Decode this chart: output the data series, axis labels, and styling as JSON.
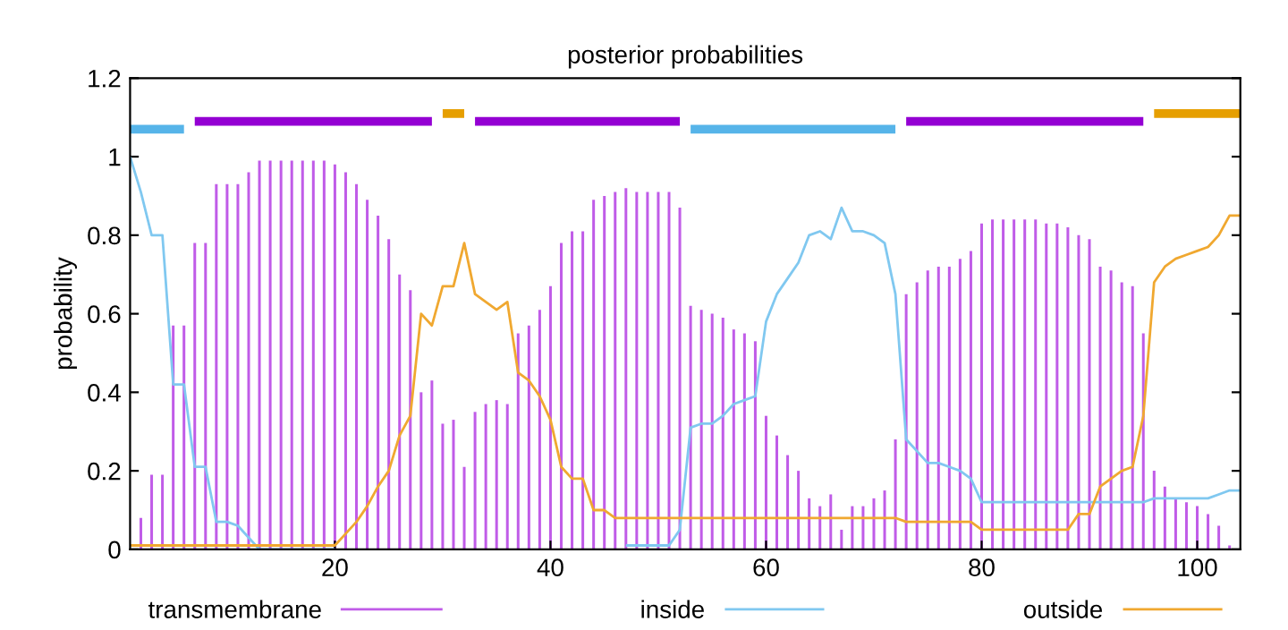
{
  "chart_data": {
    "type": "line",
    "title": "posterior probabilities",
    "ylabel": "probability",
    "x": [
      1,
      2,
      3,
      4,
      5,
      6,
      7,
      8,
      9,
      10,
      11,
      12,
      13,
      14,
      15,
      16,
      17,
      18,
      19,
      20,
      21,
      22,
      23,
      24,
      25,
      26,
      27,
      28,
      29,
      30,
      31,
      32,
      33,
      34,
      35,
      36,
      37,
      38,
      39,
      40,
      41,
      42,
      43,
      44,
      45,
      46,
      47,
      48,
      49,
      50,
      51,
      52,
      53,
      54,
      55,
      56,
      57,
      58,
      59,
      60,
      61,
      62,
      63,
      64,
      65,
      66,
      67,
      68,
      69,
      70,
      71,
      72,
      73,
      74,
      75,
      76,
      77,
      78,
      79,
      80,
      81,
      82,
      83,
      84,
      85,
      86,
      87,
      88,
      89,
      90,
      91,
      92,
      93,
      94,
      95,
      96,
      97,
      98,
      99,
      100,
      101,
      102,
      103,
      104
    ],
    "series": [
      {
        "name": "transmembrane",
        "type": "bar",
        "color": "#c05ce8",
        "values": [
          0,
          0.08,
          0.19,
          0.19,
          0.57,
          0.57,
          0.78,
          0.78,
          0.93,
          0.93,
          0.93,
          0.96,
          0.99,
          0.99,
          0.99,
          0.99,
          0.99,
          0.99,
          0.99,
          0.98,
          0.96,
          0.93,
          0.89,
          0.85,
          0.79,
          0.7,
          0.66,
          0.4,
          0.43,
          0.32,
          0.33,
          0.21,
          0.35,
          0.37,
          0.38,
          0.37,
          0.55,
          0.57,
          0.61,
          0.67,
          0.78,
          0.81,
          0.81,
          0.89,
          0.9,
          0.91,
          0.92,
          0.91,
          0.91,
          0.91,
          0.91,
          0.87,
          0.62,
          0.61,
          0.6,
          0.59,
          0.56,
          0.55,
          0.53,
          0.34,
          0.29,
          0.24,
          0.2,
          0.13,
          0.11,
          0.14,
          0.05,
          0.11,
          0.11,
          0.13,
          0.15,
          0.28,
          0.65,
          0.68,
          0.71,
          0.72,
          0.72,
          0.74,
          0.76,
          0.83,
          0.84,
          0.84,
          0.84,
          0.84,
          0.84,
          0.83,
          0.83,
          0.82,
          0.8,
          0.79,
          0.72,
          0.71,
          0.68,
          0.67,
          0.55,
          0.2,
          0.16,
          0.13,
          0.12,
          0.11,
          0.09,
          0.06,
          0.01,
          0
        ]
      },
      {
        "name": "inside",
        "color": "#80c8f0",
        "values": [
          1.0,
          0.91,
          0.8,
          0.8,
          0.42,
          0.42,
          0.21,
          0.21,
          0.07,
          0.07,
          0.06,
          0.03,
          0,
          0,
          0,
          0,
          0,
          0,
          0,
          0,
          null,
          null,
          null,
          null,
          null,
          null,
          null,
          null,
          null,
          null,
          null,
          null,
          null,
          null,
          null,
          null,
          null,
          null,
          null,
          null,
          null,
          null,
          null,
          null,
          null,
          null,
          0.01,
          0.01,
          0.01,
          0.01,
          0.01,
          0.05,
          0.31,
          0.32,
          0.32,
          0.34,
          0.37,
          0.38,
          0.39,
          0.58,
          0.65,
          0.69,
          0.73,
          0.8,
          0.81,
          0.79,
          0.87,
          0.81,
          0.81,
          0.8,
          0.78,
          0.65,
          0.28,
          0.25,
          0.22,
          0.22,
          0.21,
          0.2,
          0.18,
          0.12,
          0.12,
          0.12,
          0.12,
          0.12,
          0.12,
          0.12,
          0.12,
          0.12,
          0.12,
          0.12,
          0.12,
          0.12,
          0.12,
          0.12,
          0.12,
          0.13,
          0.13,
          0.13,
          0.13,
          0.13,
          0.13,
          0.14,
          0.15,
          0.15
        ]
      },
      {
        "name": "outside",
        "color": "#f0a830",
        "values": [
          0.01,
          0.01,
          0.01,
          0.01,
          0.01,
          0.01,
          0.01,
          0.01,
          0.01,
          0.01,
          0.01,
          0.01,
          0.01,
          0.01,
          0.01,
          0.01,
          0.01,
          0.01,
          0.01,
          0.01,
          0.04,
          0.07,
          0.11,
          0.16,
          0.2,
          0.29,
          0.34,
          0.6,
          0.57,
          0.67,
          0.67,
          0.78,
          0.65,
          0.63,
          0.61,
          0.63,
          0.45,
          0.43,
          0.39,
          0.33,
          0.21,
          0.18,
          0.18,
          0.1,
          0.1,
          0.08,
          0.08,
          0.08,
          0.08,
          0.08,
          0.08,
          0.08,
          0.08,
          0.08,
          0.08,
          0.08,
          0.08,
          0.08,
          0.08,
          0.08,
          0.08,
          0.08,
          0.08,
          0.08,
          0.08,
          0.08,
          0.08,
          0.08,
          0.08,
          0.08,
          0.08,
          0.08,
          0.07,
          0.07,
          0.07,
          0.07,
          0.07,
          0.07,
          0.07,
          0.05,
          0.05,
          0.05,
          0.05,
          0.05,
          0.05,
          0.05,
          0.05,
          0.05,
          0.09,
          0.09,
          0.16,
          0.18,
          0.2,
          0.21,
          0.34,
          0.68,
          0.72,
          0.74,
          0.75,
          0.76,
          0.77,
          0.8,
          0.85,
          0.85
        ]
      },
      {
        "color": "#56b4e9",
        "x": [
          1,
          6,
          null,
          53,
          72
        ],
        "values": [
          1.07,
          1.07,
          null,
          1.07,
          1.07
        ]
      },
      {
        "color": "#9400d3",
        "x": [
          7,
          29,
          null,
          33,
          52,
          null,
          73,
          95
        ],
        "values": [
          1.09,
          1.09,
          null,
          1.09,
          1.09,
          null,
          1.09,
          1.09
        ]
      },
      {
        "color": "#e69f00",
        "x": [
          30,
          32,
          null,
          96,
          104
        ],
        "values": [
          1.11,
          1.11,
          null,
          1.11,
          1.11
        ]
      }
    ],
    "xlim": [
      1,
      104
    ],
    "xticks": [
      20,
      40,
      60,
      80,
      100
    ],
    "ylim": [
      0,
      1.2
    ],
    "yticks": [
      0,
      0.2,
      0.4,
      0.6,
      0.8,
      1,
      1.2
    ],
    "grid": false,
    "legend": "bottom",
    "marker": "none",
    "line_style": "solid"
  }
}
